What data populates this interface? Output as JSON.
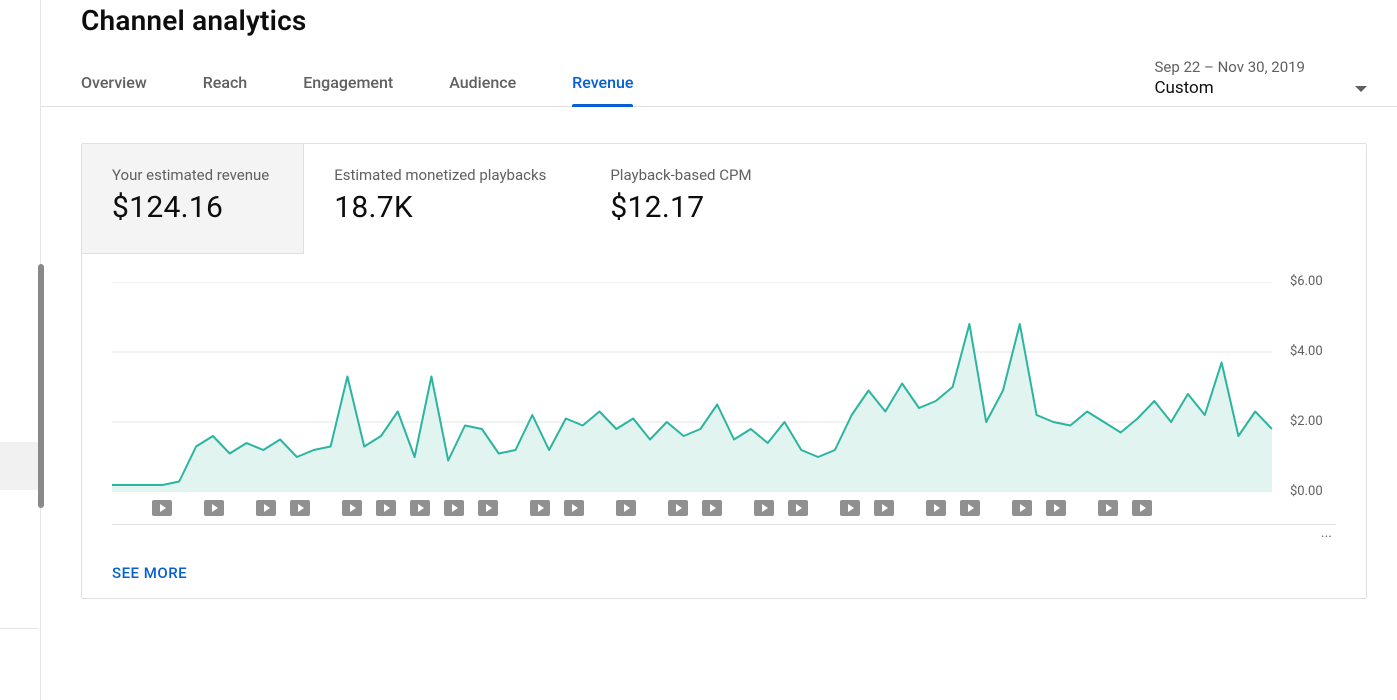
{
  "page": {
    "title": "Channel analytics"
  },
  "tabs": [
    {
      "label": "Overview",
      "active": false
    },
    {
      "label": "Reach",
      "active": false
    },
    {
      "label": "Engagement",
      "active": false
    },
    {
      "label": "Audience",
      "active": false
    },
    {
      "label": "Revenue",
      "active": true
    }
  ],
  "date_picker": {
    "range_label": "Sep 22 – Nov 30, 2019",
    "mode_label": "Custom"
  },
  "metrics": [
    {
      "label": "Your estimated revenue",
      "value": "$124.16",
      "active": true
    },
    {
      "label": "Estimated monetized playbacks",
      "value": "18.7K",
      "active": false
    },
    {
      "label": "Playback-based CPM",
      "value": "$12.17",
      "active": false
    }
  ],
  "chart": {
    "type": "area",
    "ylim": [
      0,
      6
    ],
    "yticks": [
      6,
      4,
      2,
      0
    ],
    "ytick_labels": [
      "$6.00",
      "$4.00",
      "$2.00",
      "$0.00"
    ],
    "grid_color": "#e5e5e5",
    "axis_color": "#bdbdbd",
    "line_color": "#2bb5a0",
    "fill_color": "#e1f4f0",
    "line_width": 2,
    "background_color": "#ffffff",
    "label_color": "#606060",
    "label_fontsize": 13,
    "values": [
      0.2,
      0.2,
      0.2,
      0.2,
      0.3,
      1.3,
      1.6,
      1.1,
      1.4,
      1.2,
      1.5,
      1.0,
      1.2,
      1.3,
      3.3,
      1.3,
      1.6,
      2.3,
      1.0,
      3.3,
      0.9,
      1.9,
      1.8,
      1.1,
      1.2,
      2.2,
      1.2,
      2.1,
      1.9,
      2.3,
      1.8,
      2.1,
      1.5,
      2.0,
      1.6,
      1.8,
      2.5,
      1.5,
      1.8,
      1.4,
      2.0,
      1.2,
      1.0,
      1.2,
      2.2,
      2.9,
      2.3,
      3.1,
      2.4,
      2.6,
      3.0,
      4.8,
      2.0,
      2.9,
      4.8,
      2.2,
      2.0,
      1.9,
      2.3,
      2.0,
      1.7,
      2.1,
      2.6,
      2.0,
      2.8,
      2.2,
      3.7,
      1.6,
      2.3,
      1.8
    ],
    "marker_groups": [
      1,
      1,
      2,
      5,
      2,
      1,
      2,
      2,
      2,
      2,
      2,
      2
    ]
  },
  "footer": {
    "see_more": "SEE MORE",
    "ellipsis": "..."
  }
}
